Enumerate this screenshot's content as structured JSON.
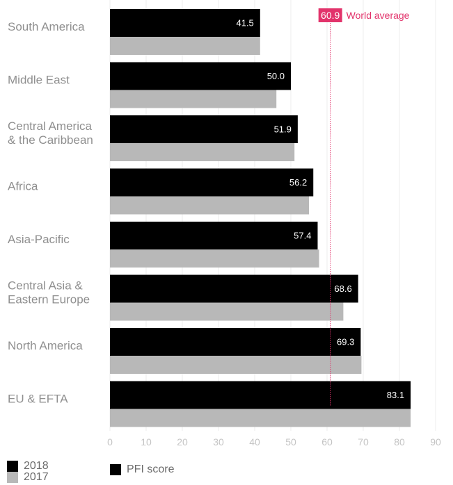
{
  "chart_data": {
    "type": "bar",
    "orientation": "horizontal",
    "categories": [
      "South America",
      "Middle East",
      "Central America & the Caribbean",
      "Africa",
      "Asia-Pacific",
      "Central Asia & Eastern Europe",
      "North America",
      "EU & EFTA"
    ],
    "category_lines": [
      [
        "South America"
      ],
      [
        "Middle East"
      ],
      [
        "Central America",
        "& the Caribbean"
      ],
      [
        "Africa"
      ],
      [
        "Asia-Pacific"
      ],
      [
        "Central Asia &",
        "Eastern Europe"
      ],
      [
        "North America"
      ],
      [
        "EU & EFTA"
      ]
    ],
    "series": [
      {
        "name": "2018",
        "color": "#000000",
        "values": [
          41.5,
          50.0,
          51.9,
          56.2,
          57.4,
          68.6,
          69.3,
          83.1
        ],
        "labels": [
          "41.5",
          "50.0",
          "51.9",
          "56.2",
          "57.4",
          "68.6",
          "69.3",
          "83.1"
        ]
      },
      {
        "name": "2017",
        "color": "#b8b8b8",
        "values": [
          41.5,
          46.0,
          51.0,
          55.0,
          57.8,
          64.5,
          69.5,
          83.1
        ]
      }
    ],
    "xlim": [
      0,
      90
    ],
    "xticks": [
      0,
      10,
      20,
      30,
      40,
      50,
      60,
      70,
      80,
      90
    ],
    "grid": true,
    "reference_line": {
      "value": 60.9,
      "label": "60.9",
      "text": "World average",
      "color": "#e2336b"
    },
    "legend_position": "bottom-left",
    "measure_label": "PFI score"
  }
}
